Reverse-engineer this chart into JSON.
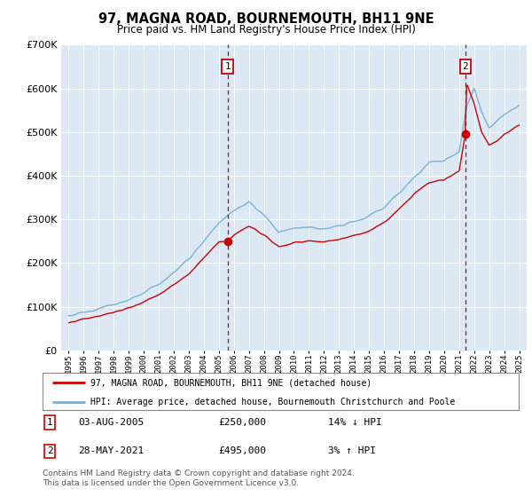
{
  "title": "97, MAGNA ROAD, BOURNEMOUTH, BH11 9NE",
  "subtitle": "Price paid vs. HM Land Registry's House Price Index (HPI)",
  "background_color": "#dce9f5",
  "ylim": [
    0,
    700000
  ],
  "yticks": [
    0,
    100000,
    200000,
    300000,
    400000,
    500000,
    600000,
    700000
  ],
  "legend_label_red": "97, MAGNA ROAD, BOURNEMOUTH, BH11 9NE (detached house)",
  "legend_label_blue": "HPI: Average price, detached house, Bournemouth Christchurch and Poole",
  "sale1_date": "03-AUG-2005",
  "sale1_price": "£250,000",
  "sale1_pct": "14% ↓ HPI",
  "sale2_date": "28-MAY-2021",
  "sale2_price": "£495,000",
  "sale2_pct": "3% ↑ HPI",
  "footer": "Contains HM Land Registry data © Crown copyright and database right 2024.\nThis data is licensed under the Open Government Licence v3.0.",
  "red_color": "#cc0000",
  "blue_color": "#7ab0d4",
  "sale1_x": 2005.58,
  "sale2_x": 2021.41,
  "sale1_y": 250000,
  "sale2_y": 495000,
  "xmin": 1994.5,
  "xmax": 2025.5
}
